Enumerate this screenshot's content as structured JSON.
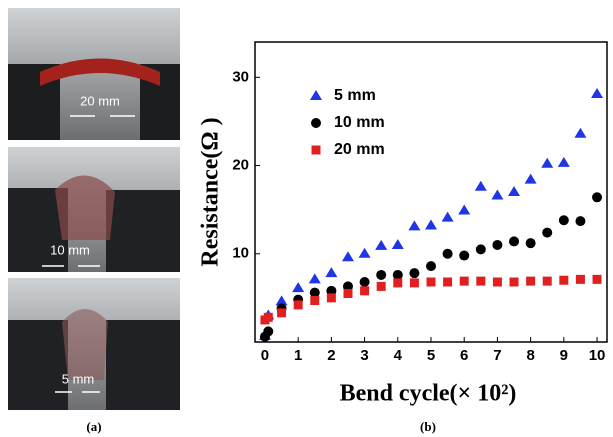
{
  "photos": {
    "labels": [
      "20 mm",
      "10 mm",
      "5 mm"
    ],
    "caption": "(a)"
  },
  "chart_data": {
    "type": "scatter",
    "caption": "(b)",
    "x_label": "Bend cycle(× 10²)",
    "y_label": "Resistance(Ω  )",
    "x": [
      0,
      0.1,
      0.5,
      1,
      1.5,
      2,
      2.5,
      3,
      3.5,
      4,
      4.5,
      5,
      5.5,
      6,
      6.5,
      7,
      7.5,
      8,
      8.5,
      9,
      9.5,
      10
    ],
    "series": [
      {
        "name": "5 mm",
        "color": "#1f35e6",
        "marker": "triangle",
        "values": [
          0.7,
          3.0,
          4.6,
          6.1,
          7.1,
          7.8,
          9.6,
          10.0,
          10.9,
          11.0,
          13.1,
          13.2,
          14.1,
          14.9,
          17.6,
          16.6,
          17.0,
          18.4,
          20.2,
          20.3,
          23.6,
          28.1
        ]
      },
      {
        "name": "10 mm",
        "color": "#000000",
        "marker": "circle",
        "values": [
          0.6,
          1.2,
          3.8,
          4.8,
          5.6,
          5.8,
          6.3,
          6.8,
          7.6,
          7.6,
          7.8,
          8.6,
          10.0,
          9.8,
          10.5,
          11.0,
          11.4,
          11.2,
          12.4,
          13.8,
          13.7,
          16.4
        ]
      },
      {
        "name": "20 mm",
        "color": "#e02020",
        "marker": "square",
        "values": [
          2.5,
          2.8,
          3.3,
          4.2,
          4.7,
          5.0,
          5.5,
          5.8,
          6.3,
          6.7,
          6.7,
          6.8,
          6.8,
          6.9,
          6.9,
          6.8,
          6.8,
          6.9,
          6.9,
          7.0,
          7.1,
          7.1
        ]
      }
    ],
    "xlim": [
      -0.3,
      10.3
    ],
    "ylim": [
      0,
      34
    ],
    "xticks": [
      0,
      1,
      2,
      3,
      4,
      5,
      6,
      7,
      8,
      9,
      10
    ],
    "yticks": [
      10,
      20,
      30
    ]
  }
}
